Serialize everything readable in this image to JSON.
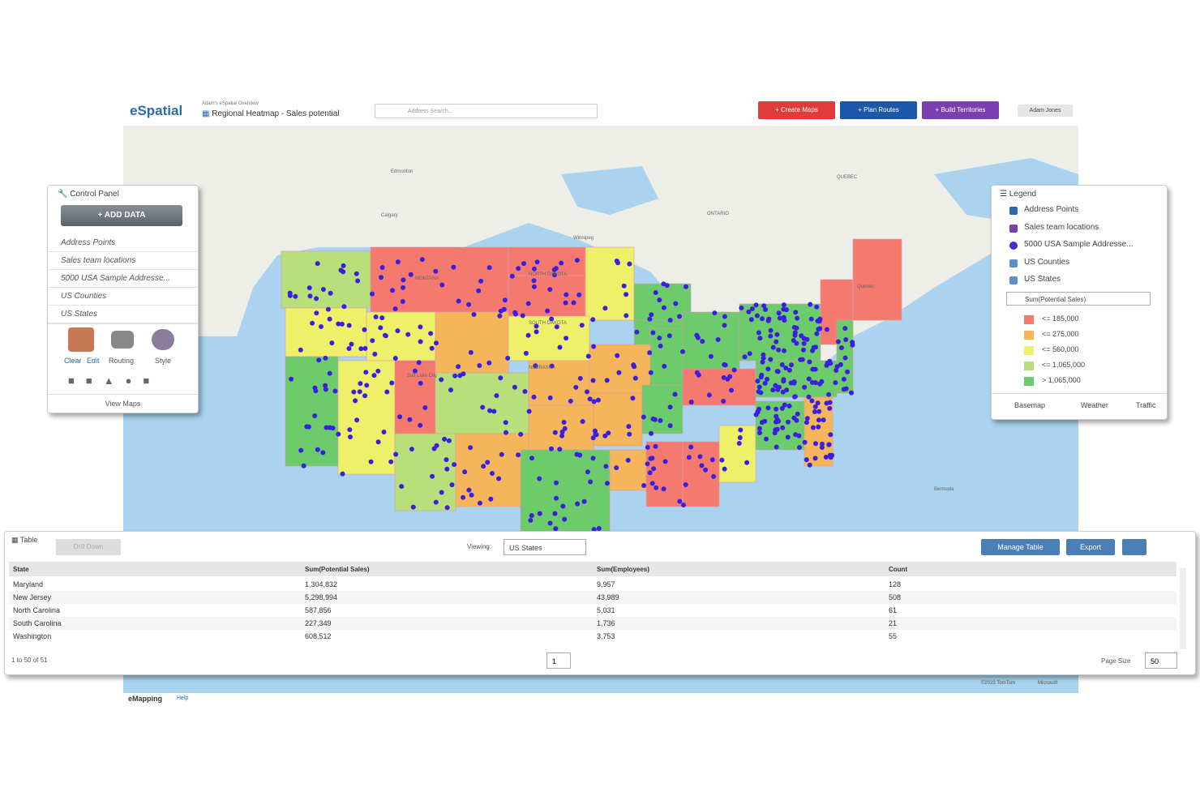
{
  "header": {
    "brand": "eSpatial",
    "breadcrumb": "Adam's eSpatial Overview",
    "map_title": "Regional Heatmap - Sales potential",
    "search_placeholder": "Address Search...",
    "buttons": [
      "+ Create Maps",
      "+ Plan Routes",
      "+ Build Territories"
    ],
    "user": "Adam Jones"
  },
  "control_panel": {
    "title": "Control Panel",
    "add_data": "ADD DATA",
    "layers": [
      "Address Points",
      "Sales team locations",
      "5000 USA Sample Addresse...",
      "US Counties",
      "US States"
    ],
    "tools": [
      "Clear",
      "Edit",
      "Routing",
      "Style"
    ],
    "view_maps": "View Maps"
  },
  "legend": {
    "title": "Legend",
    "layers": [
      "Address Points",
      "Sales team locations",
      "5000 USA Sample Addresse...",
      "US Counties",
      "US States"
    ],
    "field": "Sum(Potential Sales)",
    "ranges": [
      "<= 185,000",
      "<= 275,000",
      "<= 560,000",
      "<= 1,065,000",
      "> 1,065,000"
    ],
    "footer": [
      "Basemap",
      "Weather",
      "Traffic"
    ]
  },
  "map": {
    "labels": [
      "Edmonton",
      "Calgary",
      "Winnipeg",
      "ONTARIO",
      "QUEBEC",
      "Quebec",
      "MONTANA",
      "NORTH DAKOTA",
      "SOUTH DAKOTA",
      "NEBRASKA",
      "Salt Lake City",
      "Bermuda"
    ]
  },
  "table": {
    "title": "Table",
    "drill_down": "Drill Down",
    "viewing_label": "Viewing:",
    "viewing": "US States",
    "manage": "Manage Table",
    "export": "Export",
    "columns": [
      "State",
      "Sum(Potential Sales)",
      "Sum(Employees)",
      "Count"
    ],
    "rows": [
      [
        "Maryland",
        "1,304,832",
        "9,957",
        "128"
      ],
      [
        "New Jersey",
        "5,298,994",
        "43,989",
        "508"
      ],
      [
        "North Carolina",
        "587,856",
        "5,031",
        "61"
      ],
      [
        "South Carolina",
        "227,349",
        "1,736",
        "21"
      ],
      [
        "Washington",
        "608,512",
        "3,753",
        "55"
      ]
    ],
    "pagination": "1 to 50 of 51",
    "page": "1",
    "page_size_label": "Page Size",
    "page_size": "50"
  },
  "footer": {
    "brand": "eMapping",
    "help": "Help",
    "copyright": "©2023 TomTom",
    "microsoft": "Microsoft"
  }
}
